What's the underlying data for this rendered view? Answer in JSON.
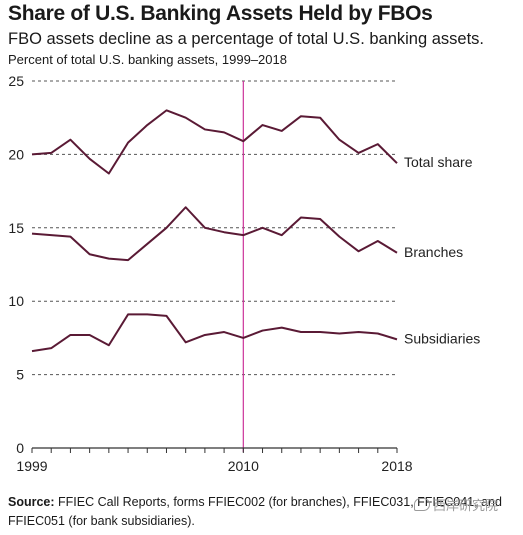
{
  "title": "Share of U.S. Banking Assets Held by FBOs",
  "subtitle": "FBO assets decline as a percentage of total U.S. banking assets.",
  "units_label": "Percent of total U.S. banking assets, 1999–2018",
  "source": {
    "label": "Source:",
    "text": "FFIEC Call Reports, forms FFIEC002 (for branches), FFIEC031, FFIEC041, and FFIEC051 (for bank subsidiaries)."
  },
  "watermark": "西岸研究院",
  "colors": {
    "line": "#5a1a35",
    "marker": "#cc3399",
    "grid": "#555555",
    "axis": "#333333"
  },
  "chart_data": {
    "type": "line",
    "title": "Share of U.S. Banking Assets Held by FBOs",
    "xlabel": "",
    "ylabel": "Percent of total U.S. banking assets, 1999–2018",
    "x": [
      1999,
      2000,
      2001,
      2002,
      2003,
      2004,
      2005,
      2006,
      2007,
      2008,
      2009,
      2010,
      2011,
      2012,
      2013,
      2014,
      2015,
      2016,
      2017,
      2018
    ],
    "xticks": [
      1999,
      2010,
      2018
    ],
    "yticks": [
      0,
      5,
      10,
      15,
      20,
      25
    ],
    "ylim": [
      0,
      25
    ],
    "xlim": [
      1999,
      2018
    ],
    "grid": "horizontal dashed",
    "marker_line": {
      "x": 2010
    },
    "legend": "inline labels at right end of lines",
    "series": [
      {
        "name": "Total share",
        "values": [
          20.0,
          20.1,
          21.0,
          19.7,
          18.7,
          20.8,
          22.0,
          23.0,
          22.5,
          21.7,
          21.5,
          20.9,
          22.0,
          21.6,
          22.6,
          22.5,
          21.0,
          20.1,
          20.7,
          19.4
        ]
      },
      {
        "name": "Branches",
        "values": [
          14.6,
          14.5,
          14.4,
          13.2,
          12.9,
          12.8,
          13.9,
          15.0,
          16.4,
          15.0,
          14.7,
          14.5,
          15.0,
          14.5,
          15.7,
          15.6,
          14.4,
          13.4,
          14.1,
          13.3
        ]
      },
      {
        "name": "Subsidiaries",
        "values": [
          6.6,
          6.8,
          7.7,
          7.7,
          7.0,
          9.1,
          9.1,
          9.0,
          7.2,
          7.7,
          7.9,
          7.5,
          8.0,
          8.2,
          7.9,
          7.9,
          7.8,
          7.9,
          7.8,
          7.4
        ]
      }
    ]
  }
}
